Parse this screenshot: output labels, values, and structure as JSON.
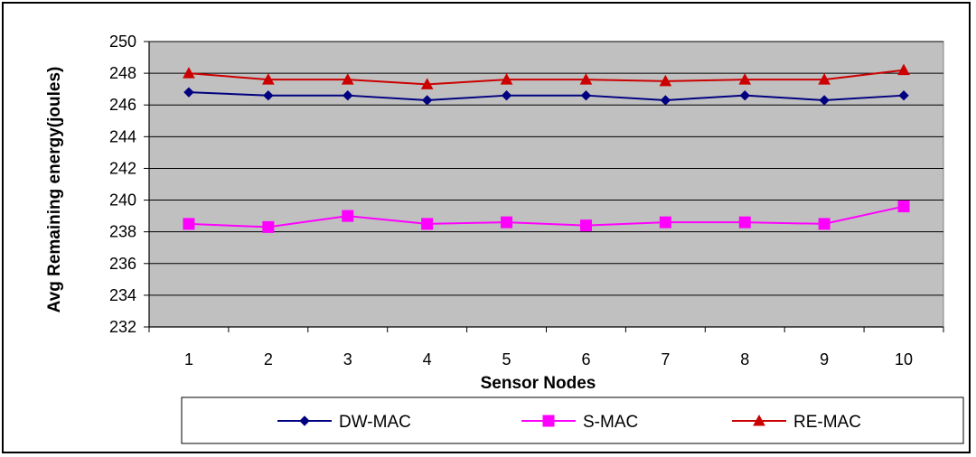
{
  "chart_data": {
    "type": "line",
    "categories": [
      "1",
      "2",
      "3",
      "4",
      "5",
      "6",
      "7",
      "8",
      "9",
      "10"
    ],
    "series": [
      {
        "name": "DW-MAC",
        "color": "#000080",
        "marker": "diamond",
        "values": [
          246.8,
          246.6,
          246.6,
          246.3,
          246.6,
          246.6,
          246.3,
          246.6,
          246.3,
          246.6
        ]
      },
      {
        "name": "S-MAC",
        "color": "#FF00FF",
        "marker": "square",
        "values": [
          238.5,
          238.3,
          239.0,
          238.5,
          238.6,
          238.4,
          238.6,
          238.6,
          238.5,
          239.6
        ]
      },
      {
        "name": "RE-MAC",
        "color": "#CC0000",
        "marker": "triangle",
        "values": [
          248.0,
          247.6,
          247.6,
          247.3,
          247.6,
          247.6,
          247.5,
          247.6,
          247.6,
          248.2
        ]
      }
    ],
    "yticks": [
      "232",
      "234",
      "236",
      "238",
      "240",
      "242",
      "244",
      "246",
      "248",
      "250"
    ],
    "ylim": [
      232,
      250
    ],
    "xlabel": "Sensor Nodes",
    "ylabel": "Avg Remaining energy(joules)",
    "grid": true,
    "legend_position": "bottom",
    "plot_background": "#C0C0C0"
  }
}
